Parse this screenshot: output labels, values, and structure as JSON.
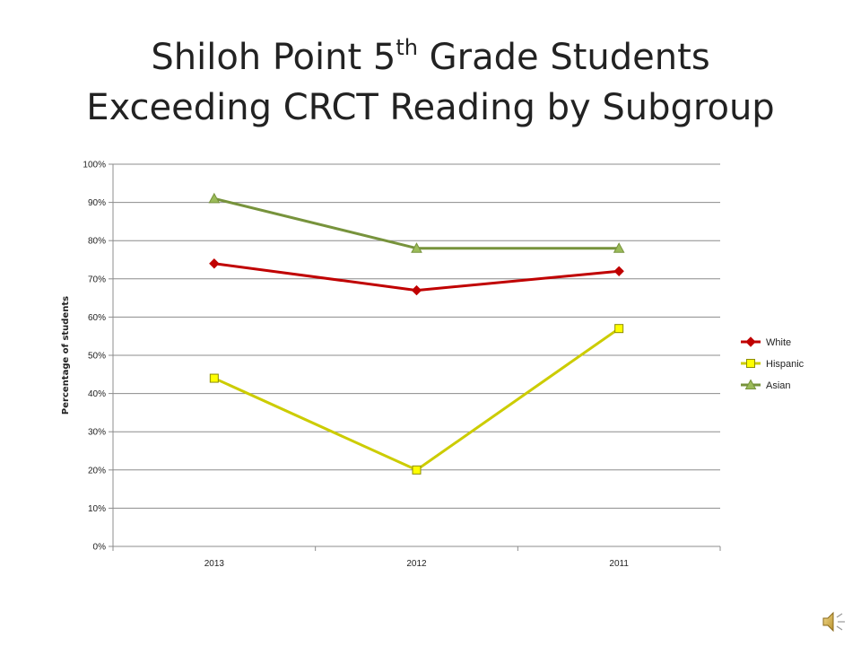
{
  "slide": {
    "title_part1": "Shiloh Point 5",
    "title_sup": "th",
    "title_part2": " Grade Students",
    "title_line2": "Exceeding CRCT Reading by Subgroup"
  },
  "chart_data": {
    "type": "line",
    "title": "",
    "xlabel": "",
    "ylabel": "Percentage of students",
    "categories": [
      "2013",
      "2012",
      "2011"
    ],
    "ylim": [
      0,
      100
    ],
    "yticks": [
      0,
      10,
      20,
      30,
      40,
      50,
      60,
      70,
      80,
      90,
      100
    ],
    "ytick_labels": [
      "0%",
      "10%",
      "20%",
      "30%",
      "40%",
      "50%",
      "60%",
      "70%",
      "80%",
      "90%",
      "100%"
    ],
    "grid": true,
    "legend_position": "right",
    "series": [
      {
        "name": "White",
        "values": [
          74,
          67,
          72
        ],
        "color": "#c00000",
        "marker": "diamond"
      },
      {
        "name": "Hispanic",
        "values": [
          44,
          20,
          57
        ],
        "color": "#cccc00",
        "marker_fill": "#ffff00",
        "marker": "square"
      },
      {
        "name": "Asian",
        "values": [
          91,
          78,
          78
        ],
        "color": "#77933c",
        "marker_fill": "#9bbb59",
        "marker": "triangle"
      }
    ]
  },
  "icons": {
    "speaker": "speaker-icon"
  }
}
